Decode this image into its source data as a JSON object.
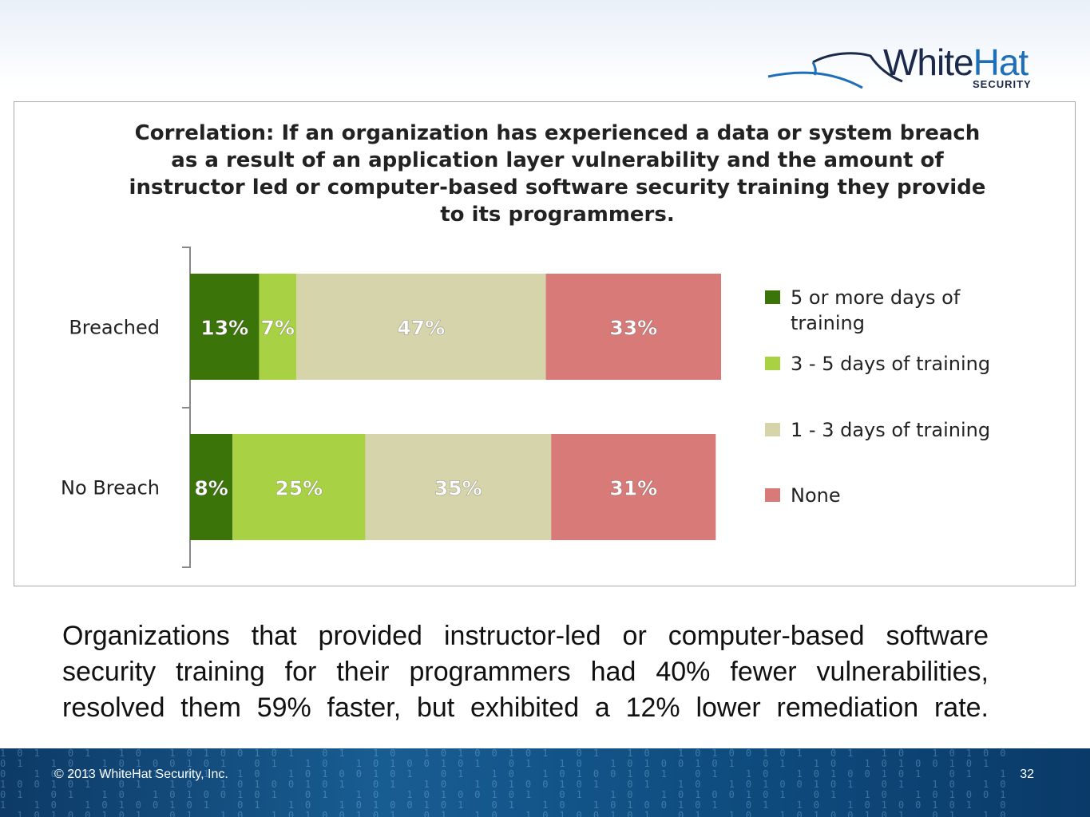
{
  "logo": {
    "name_part1": "White",
    "name_part2": "Hat",
    "sub": "SECURITY"
  },
  "chart_data": {
    "type": "bar",
    "orientation": "horizontal-stacked",
    "title": "Correlation: If an organization has experienced a data or system breach as a result of an application layer vulnerability and the amount of instructor led or computer-based software security training they provide to its programmers.",
    "categories": [
      "Breached",
      "No Breach"
    ],
    "series": [
      {
        "name": "5 or more days of training",
        "values": [
          13,
          8
        ],
        "labels": [
          "13%",
          "8%"
        ],
        "color": "#3b7408"
      },
      {
        "name": "3 - 5 days of training",
        "values": [
          7,
          25
        ],
        "labels": [
          "7%",
          "25%"
        ],
        "color": "#a8d244"
      },
      {
        "name": "1 - 3 days of training",
        "values": [
          47,
          35
        ],
        "labels": [
          "47%",
          "35%"
        ],
        "color": "#d6d4aa"
      },
      {
        "name": "None",
        "values": [
          33,
          31
        ],
        "labels": [
          "33%",
          "31%"
        ],
        "color": "#d87b78"
      }
    ],
    "xlim": [
      0,
      100
    ],
    "legend_position": "right",
    "grid": false
  },
  "caption": "Organizations that provided instructor-led or computer-based software security training for their programmers had 40% fewer vulnerabilities, resolved them 59% faster, but exhibited a 12% lower remediation rate.",
  "footer": {
    "copyright": "© 2013 WhiteHat Security, Inc.",
    "page_number": "32"
  }
}
